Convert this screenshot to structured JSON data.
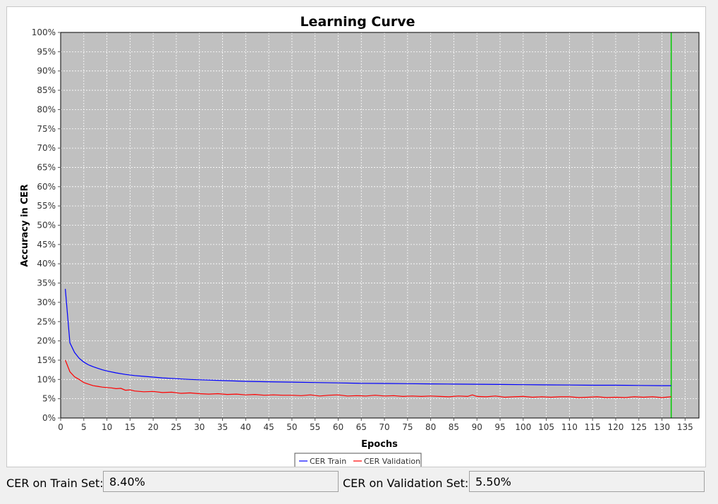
{
  "chart_data": {
    "type": "line",
    "title": "Learning Curve",
    "xlabel": "Epochs",
    "ylabel": "Accuracy in CER",
    "xlim": [
      0,
      138
    ],
    "ylim": [
      0,
      100
    ],
    "x_ticks": [
      0,
      5,
      10,
      15,
      20,
      25,
      30,
      35,
      40,
      45,
      50,
      55,
      60,
      65,
      70,
      75,
      80,
      85,
      90,
      95,
      100,
      105,
      110,
      115,
      120,
      125,
      130,
      135
    ],
    "y_ticks": [
      0,
      5,
      10,
      15,
      20,
      25,
      30,
      35,
      40,
      45,
      50,
      55,
      60,
      65,
      70,
      75,
      80,
      85,
      90,
      95,
      100
    ],
    "y_tick_suffix": "%",
    "grid": true,
    "plot_background": "#c0c0c0",
    "marker_line": {
      "x": 132,
      "color": "#00cc00"
    },
    "series": [
      {
        "name": "CER Train",
        "color": "#0000ff",
        "points": [
          [
            1,
            33.5
          ],
          [
            2,
            19.5
          ],
          [
            3,
            17
          ],
          [
            4,
            15.5
          ],
          [
            5,
            14.5
          ],
          [
            6,
            13.8
          ],
          [
            7,
            13.3
          ],
          [
            8,
            12.9
          ],
          [
            9,
            12.5
          ],
          [
            10,
            12.2
          ],
          [
            12,
            11.7
          ],
          [
            14,
            11.3
          ],
          [
            16,
            11.0
          ],
          [
            18,
            10.8
          ],
          [
            20,
            10.6
          ],
          [
            22,
            10.4
          ],
          [
            25,
            10.2
          ],
          [
            28,
            10.0
          ],
          [
            30,
            9.9
          ],
          [
            35,
            9.7
          ],
          [
            40,
            9.5
          ],
          [
            45,
            9.4
          ],
          [
            50,
            9.3
          ],
          [
            55,
            9.2
          ],
          [
            60,
            9.1
          ],
          [
            65,
            9.0
          ],
          [
            70,
            8.95
          ],
          [
            75,
            8.9
          ],
          [
            80,
            8.85
          ],
          [
            85,
            8.8
          ],
          [
            90,
            8.75
          ],
          [
            95,
            8.7
          ],
          [
            100,
            8.65
          ],
          [
            105,
            8.6
          ],
          [
            110,
            8.55
          ],
          [
            115,
            8.5
          ],
          [
            120,
            8.5
          ],
          [
            125,
            8.45
          ],
          [
            130,
            8.4
          ],
          [
            132,
            8.4
          ]
        ]
      },
      {
        "name": "CER Validation",
        "color": "#ff0000",
        "points": [
          [
            1,
            15
          ],
          [
            2,
            12
          ],
          [
            3,
            10.7
          ],
          [
            4,
            10
          ],
          [
            5,
            9.2
          ],
          [
            6,
            8.8
          ],
          [
            7,
            8.4
          ],
          [
            8,
            8.2
          ],
          [
            9,
            8.0
          ],
          [
            10,
            7.9
          ],
          [
            11,
            7.8
          ],
          [
            12,
            7.6
          ],
          [
            13,
            7.7
          ],
          [
            14,
            7.2
          ],
          [
            15,
            7.3
          ],
          [
            16,
            7.0
          ],
          [
            18,
            6.8
          ],
          [
            20,
            6.9
          ],
          [
            22,
            6.6
          ],
          [
            24,
            6.7
          ],
          [
            26,
            6.4
          ],
          [
            28,
            6.5
          ],
          [
            30,
            6.3
          ],
          [
            32,
            6.2
          ],
          [
            34,
            6.3
          ],
          [
            36,
            6.1
          ],
          [
            38,
            6.2
          ],
          [
            40,
            6.0
          ],
          [
            42,
            6.1
          ],
          [
            44,
            5.9
          ],
          [
            46,
            6.0
          ],
          [
            48,
            5.9
          ],
          [
            50,
            5.9
          ],
          [
            52,
            5.8
          ],
          [
            54,
            6.0
          ],
          [
            56,
            5.7
          ],
          [
            58,
            5.9
          ],
          [
            60,
            6.0
          ],
          [
            62,
            5.7
          ],
          [
            64,
            5.8
          ],
          [
            66,
            5.7
          ],
          [
            68,
            5.9
          ],
          [
            70,
            5.7
          ],
          [
            72,
            5.8
          ],
          [
            74,
            5.6
          ],
          [
            76,
            5.7
          ],
          [
            78,
            5.6
          ],
          [
            80,
            5.7
          ],
          [
            82,
            5.6
          ],
          [
            84,
            5.5
          ],
          [
            86,
            5.7
          ],
          [
            88,
            5.6
          ],
          [
            89,
            6.0
          ],
          [
            90,
            5.6
          ],
          [
            92,
            5.5
          ],
          [
            94,
            5.7
          ],
          [
            96,
            5.4
          ],
          [
            98,
            5.5
          ],
          [
            100,
            5.6
          ],
          [
            102,
            5.4
          ],
          [
            104,
            5.5
          ],
          [
            106,
            5.4
          ],
          [
            108,
            5.5
          ],
          [
            110,
            5.5
          ],
          [
            112,
            5.3
          ],
          [
            114,
            5.4
          ],
          [
            116,
            5.5
          ],
          [
            118,
            5.3
          ],
          [
            120,
            5.4
          ],
          [
            122,
            5.3
          ],
          [
            124,
            5.5
          ],
          [
            126,
            5.4
          ],
          [
            128,
            5.5
          ],
          [
            130,
            5.3
          ],
          [
            132,
            5.5
          ]
        ]
      }
    ]
  },
  "status": {
    "train_label": "CER on Train Set:",
    "train_value": "8.40%",
    "validation_label": "CER on Validation Set:",
    "validation_value": "5.50%"
  }
}
